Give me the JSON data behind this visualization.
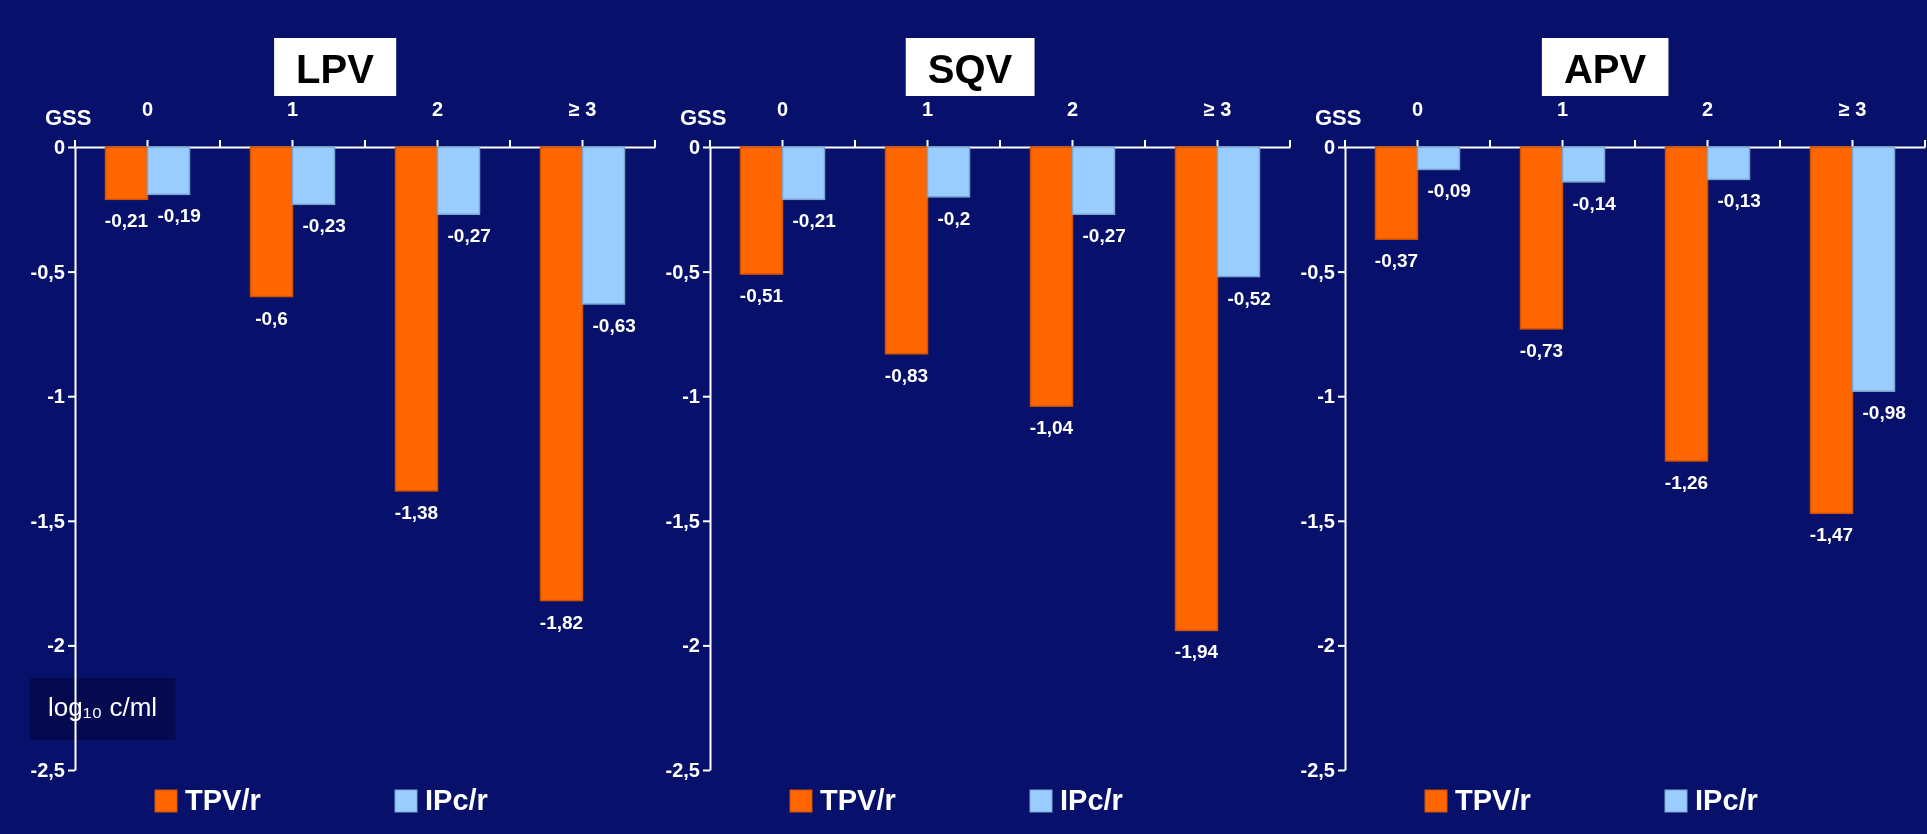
{
  "chart_data": [
    {
      "type": "bar",
      "title": "LPV",
      "xlabel": "GSS",
      "ylabel": "log₁₀ c/ml",
      "categories": [
        "0",
        "1",
        "2",
        "≥ 3"
      ],
      "series": [
        {
          "name": "TPV/r",
          "color": "#ff6600",
          "values": [
            -0.21,
            -0.6,
            -1.38,
            -1.82
          ],
          "value_labels": [
            "-0,21",
            "-0,6",
            "-1,38",
            "-1,82"
          ]
        },
        {
          "name": "IPc/r",
          "color": "#99ccff",
          "values": [
            -0.19,
            -0.23,
            -0.27,
            -0.63
          ],
          "value_labels": [
            "-0,19",
            "-0,23",
            "-0,27",
            "-0,63"
          ]
        }
      ],
      "ylim": [
        -2.5,
        0
      ],
      "yticks": [
        {
          "value": -2.5,
          "label": "-2,5"
        },
        -2,
        {
          "value": -1.5,
          "label": "-1,5"
        },
        -1,
        {
          "value": -0.5,
          "label": "-0,5"
        },
        0
      ],
      "grid": false,
      "legend": "bottom"
    },
    {
      "type": "bar",
      "title": "SQV",
      "xlabel": "GSS",
      "categories": [
        "0",
        "1",
        "2",
        "≥ 3"
      ],
      "series": [
        {
          "name": "TPV/r",
          "color": "#ff6600",
          "values": [
            -0.51,
            -0.83,
            -1.04,
            -1.94
          ],
          "value_labels": [
            "-0,51",
            "-0,83",
            "-1,04",
            "-1,94"
          ]
        },
        {
          "name": "IPc/r",
          "color": "#99ccff",
          "values": [
            -0.21,
            -0.2,
            -0.27,
            -0.52
          ],
          "value_labels": [
            "-0,21",
            "-0,2",
            "-0,27",
            "-0,52"
          ]
        }
      ],
      "ylim": [
        -2.5,
        0
      ],
      "yticks": [
        {
          "value": -2.5,
          "label": "-2,5"
        },
        -2,
        {
          "value": -1.5,
          "label": "-1,5"
        },
        -1,
        {
          "value": -0.5,
          "label": "-0,5"
        },
        0
      ],
      "grid": false,
      "legend": "bottom"
    },
    {
      "type": "bar",
      "title": "APV",
      "xlabel": "GSS",
      "categories": [
        "0",
        "1",
        "2",
        "≥ 3"
      ],
      "series": [
        {
          "name": "TPV/r",
          "color": "#ff6600",
          "values": [
            -0.37,
            -0.73,
            -1.26,
            -1.47
          ],
          "value_labels": [
            "-0,37",
            "-0,73",
            "-1,26",
            "-1,47"
          ]
        },
        {
          "name": "IPc/r",
          "color": "#99ccff",
          "values": [
            -0.09,
            -0.14,
            -0.13,
            -0.98
          ],
          "value_labels": [
            "-0,09",
            "-0,14",
            "-0,13",
            "-0,98"
          ]
        }
      ],
      "ylim": [
        -2.5,
        0
      ],
      "yticks": [
        {
          "value": -2.5,
          "label": "-2,5"
        },
        -2,
        {
          "value": -1.5,
          "label": "-1,5"
        },
        -1,
        {
          "value": -0.5,
          "label": "-0,5"
        },
        0
      ],
      "grid": false,
      "legend": "bottom"
    }
  ]
}
